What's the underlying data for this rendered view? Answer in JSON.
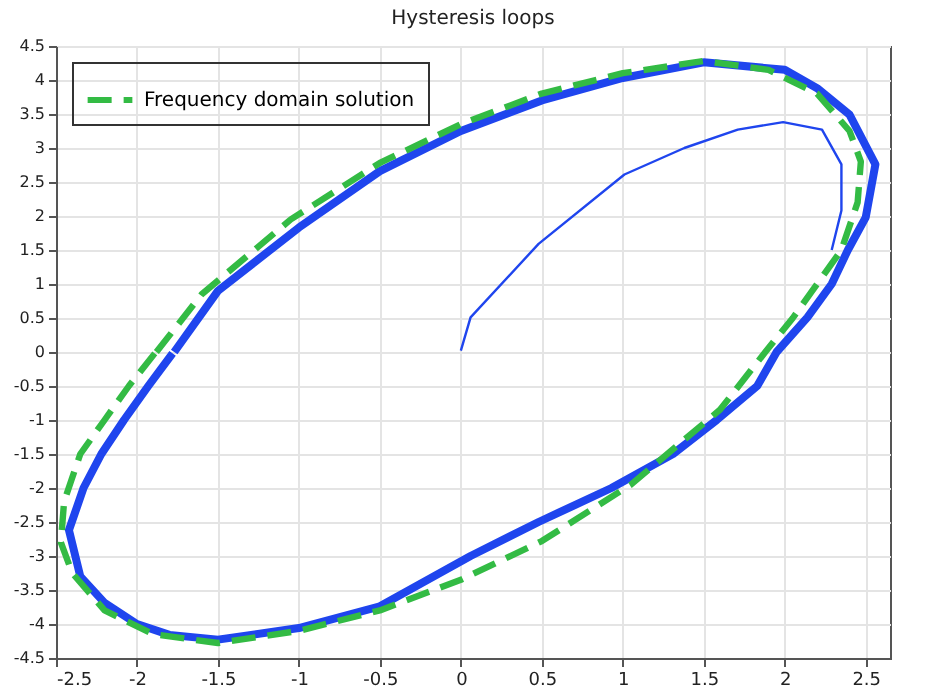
{
  "chart_data": {
    "type": "line",
    "title": "Hysteresis loops",
    "xlim": [
      -2.5,
      2.65
    ],
    "ylim": [
      -4.5,
      4.5
    ],
    "xticks": [
      -2.5,
      -2,
      -1.5,
      -1,
      -0.5,
      0,
      0.5,
      1,
      1.5,
      2,
      2.5
    ],
    "yticks": [
      -4.5,
      -4,
      -3.5,
      -3,
      -2.5,
      -2,
      -1.5,
      -1,
      -0.5,
      0,
      0.5,
      1,
      1.5,
      2,
      2.5,
      3,
      3.5,
      4,
      4.5
    ],
    "grid": true,
    "legend": "top left",
    "marker": "none",
    "series": [
      {
        "color": "#1f45ee",
        "line_style": "solid",
        "x": [
          -1.77,
          -1.5,
          -1,
          -0.5,
          0,
          0.5,
          1,
          1.5,
          2,
          2.2,
          2.4,
          2.56,
          2.5,
          2.39,
          2.29,
          2.14,
          1.95,
          1.83,
          1.58,
          1.31,
          0.93,
          0.48,
          0.06,
          -0.5,
          -1,
          -1.5,
          -1.8,
          -2,
          -2.2,
          -2.35,
          -2.42,
          -2.33,
          -2.22,
          -2.08,
          -1.93,
          -1.78
        ],
        "values": [
          0,
          0.9,
          1.83,
          2.66,
          3.25,
          3.7,
          4.03,
          4.26,
          4.15,
          3.88,
          3.49,
          2.76,
          1.98,
          1.5,
          1,
          0.51,
          0,
          -0.5,
          -1,
          -1.5,
          -2,
          -2.5,
          -3,
          -3.74,
          -4.06,
          -4.23,
          -4.16,
          -4,
          -3.69,
          -3.3,
          -2.62,
          -2,
          -1.5,
          -1,
          -0.5,
          -0.02
        ]
      },
      {
        "color": "#1f45ee",
        "line_style": "solid",
        "x": [
          0,
          0.06,
          0.48,
          1.01,
          1.38,
          1.71,
          1.99,
          2.23,
          2.35,
          2.35,
          2.29
        ],
        "values": [
          0.02,
          0.51,
          1.59,
          2.61,
          3,
          3.27,
          3.38,
          3.27,
          2.76,
          2.08,
          1.5
        ]
      },
      {
        "name": "Frequency domain solution",
        "color": "#33bb44",
        "line_style": "dashed",
        "x": [
          -1.88,
          -1.6,
          -1.05,
          -0.5,
          0,
          0.5,
          1,
          1.5,
          1.9,
          2.2,
          2.4,
          2.47,
          2.45,
          2.35,
          2.2,
          2.05,
          1.88,
          1.6,
          1.05,
          0.5,
          0,
          -0.5,
          -1,
          -1.5,
          -1.9,
          -2.2,
          -2.4,
          -2.47,
          -2.45,
          -2.35,
          -2.2,
          -2.05,
          -1.89
        ],
        "values": [
          0,
          0.85,
          1.95,
          2.78,
          3.35,
          3.8,
          4.1,
          4.28,
          4.15,
          3.8,
          3.25,
          2.8,
          2.2,
          1.5,
          1,
          0.5,
          0,
          -0.85,
          -1.95,
          -2.78,
          -3.35,
          -3.8,
          -4.1,
          -4.28,
          -4.15,
          -3.8,
          -3.25,
          -2.8,
          -2.2,
          -1.5,
          -1,
          -0.5,
          -0.02
        ]
      }
    ]
  }
}
